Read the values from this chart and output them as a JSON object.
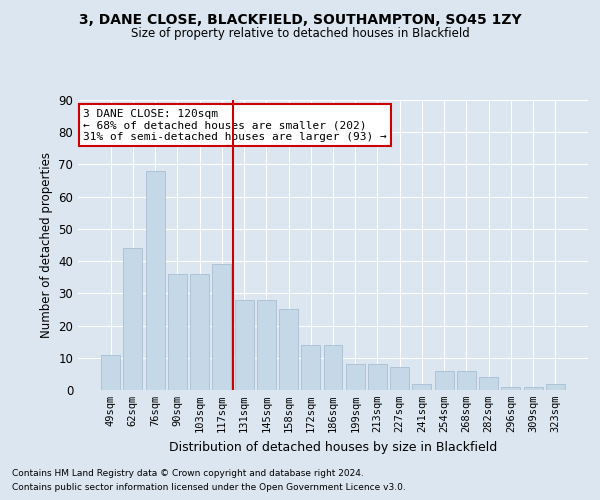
{
  "title": "3, DANE CLOSE, BLACKFIELD, SOUTHAMPTON, SO45 1ZY",
  "subtitle": "Size of property relative to detached houses in Blackfield",
  "xlabel": "Distribution of detached houses by size in Blackfield",
  "ylabel": "Number of detached properties",
  "categories": [
    "49sqm",
    "62sqm",
    "76sqm",
    "90sqm",
    "103sqm",
    "117sqm",
    "131sqm",
    "145sqm",
    "158sqm",
    "172sqm",
    "186sqm",
    "199sqm",
    "213sqm",
    "227sqm",
    "241sqm",
    "254sqm",
    "268sqm",
    "282sqm",
    "296sqm",
    "309sqm",
    "323sqm"
  ],
  "values": [
    11,
    44,
    68,
    36,
    36,
    39,
    28,
    28,
    25,
    14,
    14,
    8,
    8,
    7,
    2,
    6,
    6,
    4,
    1,
    1,
    2
  ],
  "bar_color": "#c5d8e8",
  "bar_edge_color": "#a0b8cc",
  "vline_x_idx": 5,
  "vline_color": "#cc0000",
  "annotation_text": "3 DANE CLOSE: 120sqm\n← 68% of detached houses are smaller (202)\n31% of semi-detached houses are larger (93) →",
  "annotation_box_color": "#ffffff",
  "annotation_box_edge_color": "#cc0000",
  "bg_color": "#dce6f0",
  "grid_color": "#ffffff",
  "ylim": [
    0,
    90
  ],
  "yticks": [
    0,
    10,
    20,
    30,
    40,
    50,
    60,
    70,
    80,
    90
  ],
  "footnote1": "Contains HM Land Registry data © Crown copyright and database right 2024.",
  "footnote2": "Contains public sector information licensed under the Open Government Licence v3.0."
}
